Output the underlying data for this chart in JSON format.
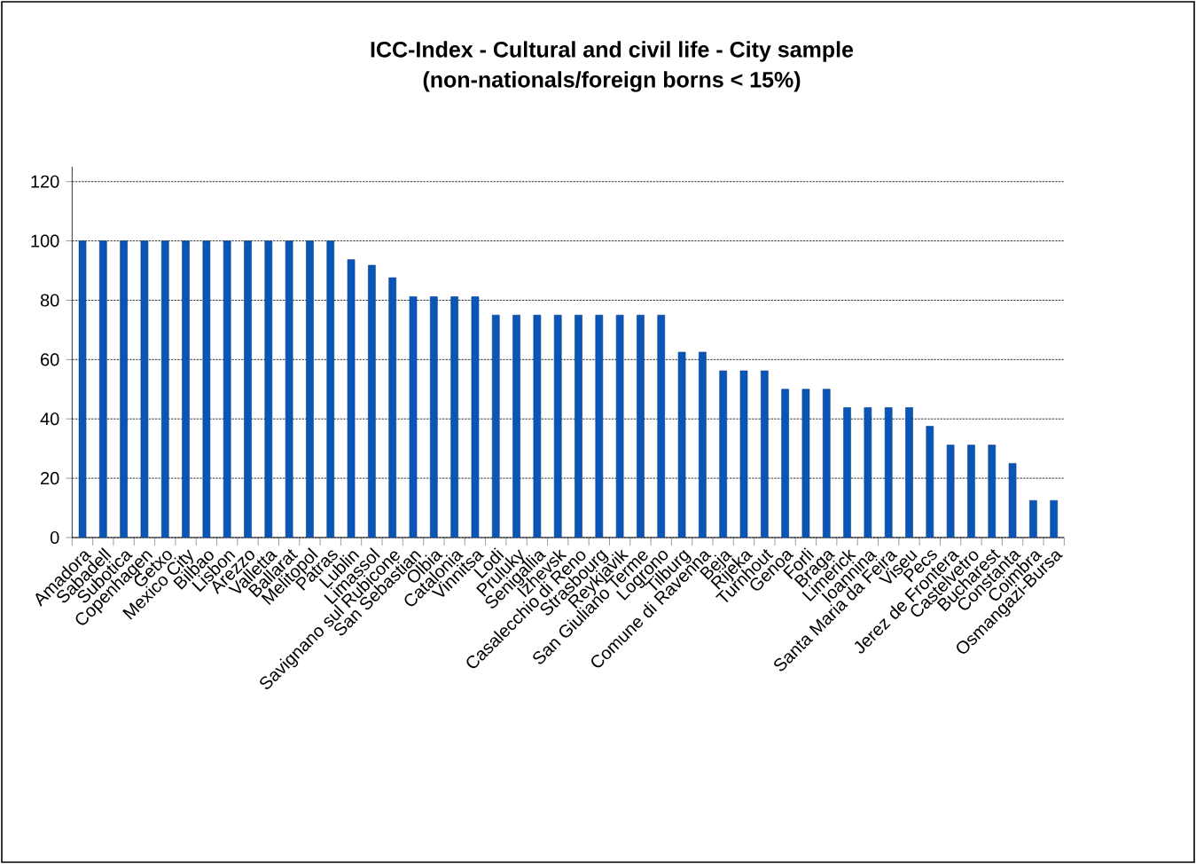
{
  "chart_data": {
    "type": "bar",
    "title": "ICC-Index - Cultural and civil life - City sample",
    "subtitle": "(non-nationals/foreign borns < 15%)",
    "categories": [
      "Amadora",
      "Sabadell",
      "Subotica",
      "Copenhagen",
      "Getxo",
      "Mexico City",
      "Bilbao",
      "Lisbon",
      "Arezzo",
      "Valletta",
      "Ballarat",
      "Melitopol",
      "Patras",
      "Lublin",
      "Limassol",
      "Savignano sul Rubicone",
      "San Sebastian",
      "Olbia",
      "Catalonia",
      "Vinnitsa",
      "Lodi",
      "Pruluky",
      "Senigallia",
      "Izhevsk",
      "Casalecchio di Reno",
      "Strasbourg",
      "Reykjavik",
      "San Giuliano Terme",
      "Logrono",
      "Tilburg",
      "Comune di Ravenna",
      "Beja",
      "Rijeka",
      "Turnhout",
      "Genoa",
      "Forli",
      "Braga",
      "Limerick",
      "Ioannina",
      "Santa Maria da Feira",
      "Viseu",
      "Pecs",
      "Jerez de Frontera",
      "Castelvetro",
      "Bucharest",
      "Constanta",
      "Coimbra",
      "Osmangazi-Bursa"
    ],
    "values": [
      100,
      100,
      100,
      100,
      100,
      100,
      100,
      100,
      100,
      100,
      100,
      100,
      100,
      93.7,
      91.8,
      87.6,
      81.2,
      81.2,
      81.2,
      81.2,
      75,
      75,
      75,
      75,
      75,
      75,
      75,
      75,
      75,
      62.5,
      62.5,
      56.2,
      56.2,
      56.2,
      50,
      50,
      50,
      43.8,
      43.8,
      43.8,
      43.8,
      37.5,
      31.2,
      31.2,
      31.2,
      25,
      12.5,
      12.5
    ],
    "color": "#0a56b8",
    "ylim": [
      0,
      125
    ],
    "yticks": [
      0,
      20,
      40,
      60,
      80,
      100,
      120
    ],
    "grid": "y"
  }
}
